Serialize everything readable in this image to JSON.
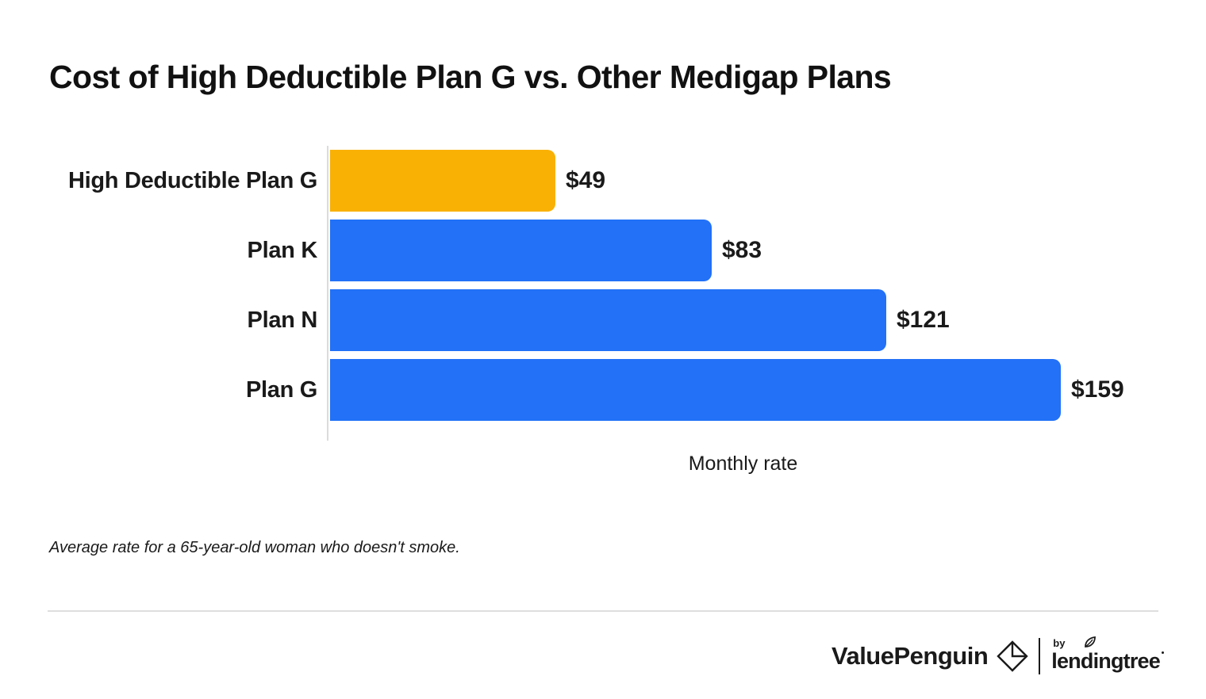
{
  "title": "Cost of High Deductible Plan G vs. Other Medigap Plans",
  "chart_data": {
    "type": "bar",
    "orientation": "horizontal",
    "categories": [
      "High Deductible Plan G",
      "Plan K",
      "Plan N",
      "Plan G"
    ],
    "values": [
      49,
      83,
      121,
      159
    ],
    "value_labels": [
      "$49",
      "$83",
      "$121",
      "$159"
    ],
    "bar_colors": [
      "#F9B104",
      "#2271F7",
      "#2271F7",
      "#2271F7"
    ],
    "xlabel": "Monthly rate",
    "xlim": [
      0,
      159
    ],
    "grid": false,
    "legend": "none",
    "accent_orange": "#F9B104",
    "accent_blue": "#2271F7"
  },
  "footnote": "Average rate for a 65-year-old woman who doesn't smoke.",
  "footer": {
    "brand": "ValuePenguin",
    "by_label": "by",
    "partner_brand": "lendingtree"
  }
}
